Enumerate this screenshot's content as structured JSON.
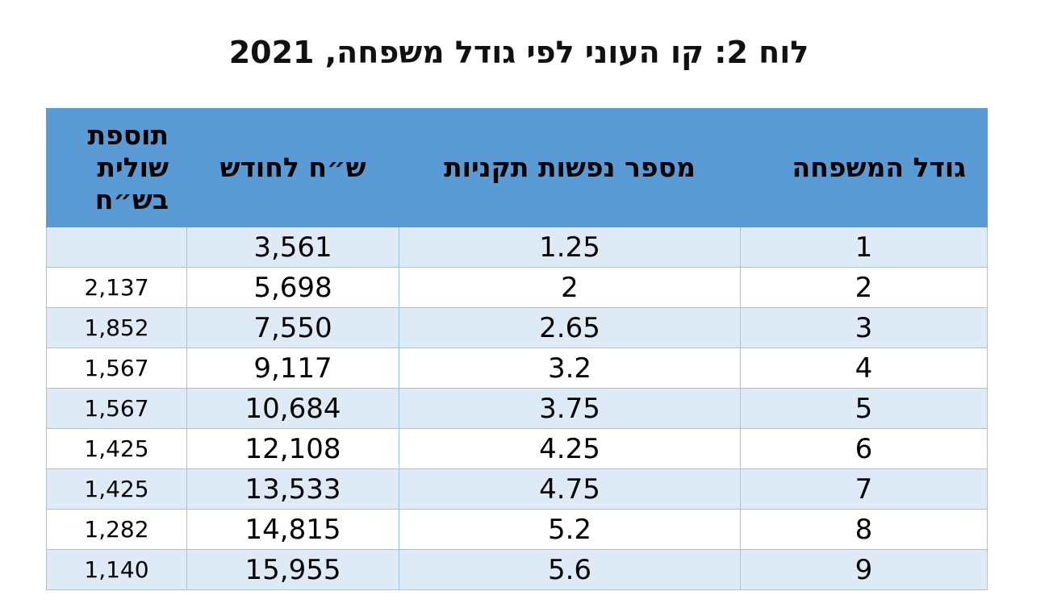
{
  "title": "לוח 2: קו העוני לפי גודל משפחה, 2021",
  "table": {
    "headers": {
      "family_size": "גודל המשפחה",
      "standard_persons": "מספר נפשות תקניות",
      "nis_per_month": "ש״ח לחודש",
      "marginal_addition": "תוספת שולית בש״ח"
    },
    "rows": [
      {
        "family_size": "1",
        "standard_persons": "1.25",
        "nis_per_month": "3,561",
        "marginal_addition": ""
      },
      {
        "family_size": "2",
        "standard_persons": "2",
        "nis_per_month": "5,698",
        "marginal_addition": "2,137"
      },
      {
        "family_size": "3",
        "standard_persons": "2.65",
        "nis_per_month": "7,550",
        "marginal_addition": "1,852"
      },
      {
        "family_size": "4",
        "standard_persons": "3.2",
        "nis_per_month": "9,117",
        "marginal_addition": "1,567"
      },
      {
        "family_size": "5",
        "standard_persons": "3.75",
        "nis_per_month": "10,684",
        "marginal_addition": "1,567"
      },
      {
        "family_size": "6",
        "standard_persons": "4.25",
        "nis_per_month": "12,108",
        "marginal_addition": "1,425"
      },
      {
        "family_size": "7",
        "standard_persons": "4.75",
        "nis_per_month": "13,533",
        "marginal_addition": "1,425"
      },
      {
        "family_size": "8",
        "standard_persons": "5.2",
        "nis_per_month": "14,815",
        "marginal_addition": "1,282"
      },
      {
        "family_size": "9",
        "standard_persons": "5.6",
        "nis_per_month": "15,955",
        "marginal_addition": "1,140"
      }
    ]
  },
  "colors": {
    "header_bg": "#5b9bd5",
    "row_alt_bg": "#deeaf6",
    "border": "#9dc3e6"
  }
}
